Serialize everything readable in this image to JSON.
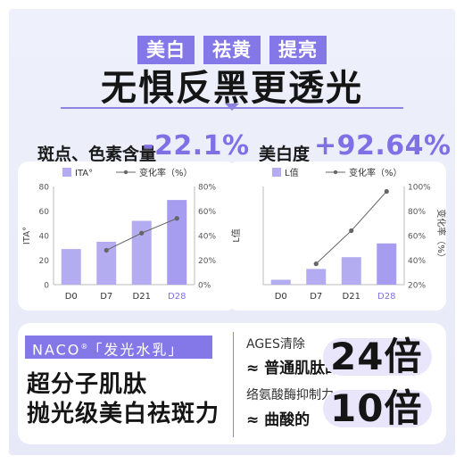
{
  "tags": [
    "美白",
    "祛黄",
    "提亮"
  ],
  "headline": "无惧反黑更透光",
  "stats": {
    "left": {
      "label": "斑点、色素含量",
      "value": "-22.1%"
    },
    "right": {
      "label": "美白度",
      "value": "+92.64%"
    }
  },
  "chart_data": [
    {
      "type": "bar",
      "categories": [
        "D0",
        "D7",
        "D21",
        "D28"
      ],
      "ylabel": "ITA°",
      "y2label": "变化率（%）",
      "ylim": [
        0,
        80
      ],
      "yticks": [
        0,
        20,
        40,
        60,
        80
      ],
      "y2lim": [
        0,
        80
      ],
      "y2ticks": [
        "0%",
        "20%",
        "40%",
        "60%",
        "80%"
      ],
      "legend_location": "top",
      "series": [
        {
          "name": "ITA°",
          "kind": "bar",
          "values": [
            29,
            35,
            52,
            69
          ],
          "color": "#b4acf0"
        },
        {
          "name": "变化率（%）",
          "kind": "line",
          "axis": "right",
          "values": [
            null,
            28,
            42,
            54
          ],
          "color": "#666666"
        }
      ],
      "highlight_category": "D28"
    },
    {
      "type": "bar",
      "categories": [
        "D0",
        "D7",
        "D21",
        "D28"
      ],
      "ylabel": "L值",
      "y2label": "变化率（%）",
      "ylim": [
        0,
        100
      ],
      "y2lim": [
        20,
        100
      ],
      "y2ticks": [
        "20%",
        "40%",
        "60%",
        "80%",
        "100%"
      ],
      "legend_location": "top",
      "series": [
        {
          "name": "L值",
          "kind": "bar",
          "values": [
            5,
            16,
            28,
            42
          ],
          "color": "#b4acf0"
        },
        {
          "name": "变化率（%）",
          "kind": "line",
          "axis": "right",
          "values": [
            null,
            37,
            64,
            96
          ],
          "color": "#666666"
        }
      ],
      "highlight_category": "D28"
    }
  ],
  "naco": {
    "brand": "NACO",
    "reg": "®",
    "product": "「发光水乳」"
  },
  "claims": [
    "超分子肌肽",
    "抛光级美白祛斑力"
  ],
  "comparisons": [
    {
      "title": "AGES清除",
      "desc": "≈ 普通肌肽的",
      "multiple": "24倍"
    },
    {
      "title": "络氨酸酶抑制力",
      "desc": "≈ 曲酸的",
      "multiple": "10倍"
    }
  ],
  "colors": {
    "accent": "#8070e6",
    "tag_bg": "#8478e8",
    "bar": "#b4acf0",
    "bar_highlight": "#9a8ef0",
    "line": "#666666",
    "bg": "#eceefa"
  }
}
